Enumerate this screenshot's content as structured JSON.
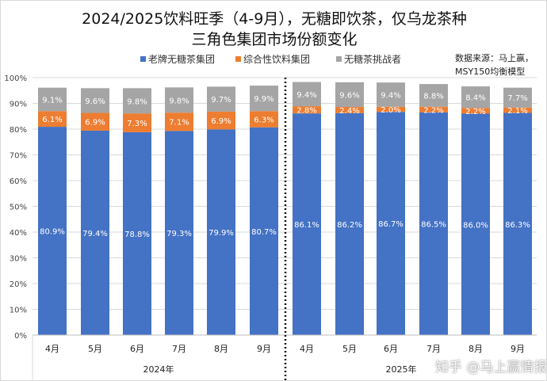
{
  "chart_data": {
    "type": "stacked-bar",
    "title_line1": "2024/2025饮料旺季（4-9月），无糖即饮茶，仅乌龙茶种",
    "title_line2": "三角色集团市场份额变化",
    "categories": [
      "4月",
      "5月",
      "6月",
      "7月",
      "8月",
      "9月",
      "4月",
      "5月",
      "6月",
      "7月",
      "8月",
      "9月"
    ],
    "groups": [
      "2024年",
      "2025年"
    ],
    "series": [
      {
        "name": "老牌无糖茶集团",
        "color": "#4472C4",
        "values": [
          80.9,
          79.4,
          78.8,
          79.3,
          79.9,
          80.7,
          86.1,
          86.2,
          86.7,
          86.5,
          86.0,
          86.3
        ]
      },
      {
        "name": "综合性饮料集团",
        "color": "#ED7D31",
        "values": [
          6.1,
          6.9,
          7.3,
          7.1,
          6.9,
          6.3,
          2.8,
          2.4,
          2.0,
          2.2,
          2.2,
          2.1
        ]
      },
      {
        "name": "无糖茶挑战者",
        "color": "#A5A5A5",
        "values": [
          9.1,
          9.6,
          9.8,
          9.8,
          9.7,
          9.9,
          9.4,
          9.6,
          9.4,
          8.8,
          8.4,
          7.7
        ]
      }
    ],
    "yticks": [
      "0%",
      "10%",
      "20%",
      "30%",
      "40%",
      "50%",
      "60%",
      "70%",
      "80%",
      "90%",
      "100%"
    ],
    "ylim": [
      0,
      100
    ],
    "legend": "top",
    "source_line1": "数据来源：马上赢，",
    "source_line2": "MSY150均衡模型",
    "watermark": "知乎 @马上赢情报站"
  }
}
